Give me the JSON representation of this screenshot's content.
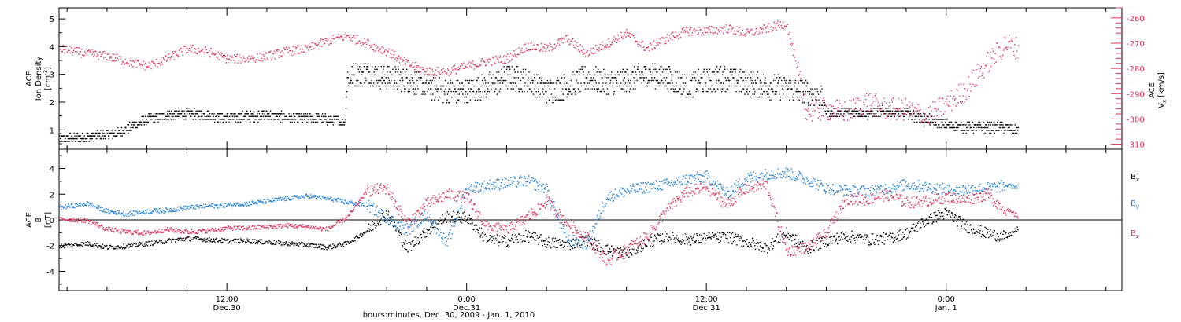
{
  "colors": {
    "density": "#000000",
    "vx": "#e0305a",
    "bx": "#000000",
    "by": "#1f7fd8",
    "bz": "#e0305a"
  },
  "xaxis": {
    "title": "hours:minutes, Dec. 30, 2009 - Jan. 1, 2010",
    "ticks": [
      {
        "t": 12,
        "time": "12:00",
        "date": "Dec.30"
      },
      {
        "t": 24,
        "time": "0:00",
        "date": "Dec.31"
      },
      {
        "t": 36,
        "time": "12:00",
        "date": "Dec.31"
      },
      {
        "t": 48,
        "time": "0:00",
        "date": "Jan. 1"
      }
    ],
    "range_hours": [
      3.6,
      56.8
    ],
    "data_end_hours": 51.6
  },
  "top_panel": {
    "left_label_1": "ACE",
    "left_label_2": "Ion Density",
    "left_unit_base": "[cm",
    "left_unit_sup": "-3",
    "left_unit_end": "]",
    "right_label_1": "ACE",
    "right_label_2_base": "V",
    "right_label_2_sub": "x",
    "right_unit": "[km/s]"
  },
  "bottom_panel": {
    "label_1": "ACE",
    "label_2": "B",
    "unit": "[nT]",
    "legend": [
      {
        "key": "bx",
        "base": "B",
        "sub": "x"
      },
      {
        "key": "by",
        "base": "B",
        "sub": "y"
      },
      {
        "key": "bz",
        "base": "B",
        "sub": "z"
      }
    ]
  },
  "chart_data": [
    {
      "type": "scatter",
      "panel": "top",
      "y_left": {
        "range": [
          0.3,
          5.4
        ],
        "ticks": [
          1,
          2,
          3,
          4,
          5
        ]
      },
      "y_right": {
        "range": [
          -312,
          -256
        ],
        "ticks": [
          -260,
          -270,
          -280,
          -290,
          -300,
          -310
        ]
      },
      "series": [
        {
          "key": "density",
          "axis": "left",
          "x": [
            3.6,
            5,
            6.5,
            8,
            9,
            10,
            11,
            12,
            13,
            14,
            15,
            16,
            17,
            17.9,
            18,
            19,
            20,
            21,
            22,
            23,
            24,
            25,
            26,
            27,
            28,
            29,
            30,
            31,
            32,
            33,
            34,
            35,
            36,
            37,
            38,
            39,
            40,
            41,
            41.8,
            42,
            43,
            44,
            45,
            46,
            47,
            48,
            49,
            50,
            51,
            51.6
          ],
          "y": [
            0.7,
            0.75,
            0.9,
            1.4,
            1.55,
            1.6,
            1.55,
            1.45,
            1.5,
            1.55,
            1.45,
            1.45,
            1.4,
            1.3,
            2.9,
            3.1,
            2.9,
            2.8,
            2.6,
            2.4,
            2.4,
            2.6,
            2.9,
            2.8,
            2.4,
            2.6,
            2.9,
            2.7,
            2.8,
            3.0,
            2.9,
            2.6,
            2.8,
            2.9,
            2.7,
            2.6,
            2.5,
            2.4,
            2.1,
            1.6,
            1.7,
            1.6,
            1.7,
            1.6,
            1.4,
            1.2,
            1.1,
            1.1,
            1.1,
            1.0
          ]
        },
        {
          "key": "vx",
          "axis": "right",
          "x": [
            3.6,
            5,
            6,
            7,
            8,
            9,
            10,
            11,
            12,
            13,
            14,
            15,
            16,
            17,
            18,
            19,
            20,
            21,
            22,
            23,
            24,
            25,
            26,
            27,
            28,
            29,
            30,
            31,
            32,
            33,
            34,
            35,
            36,
            37,
            38,
            39,
            40,
            41,
            42,
            43,
            44,
            45,
            46,
            47,
            48,
            49,
            50,
            51,
            51.6
          ],
          "y": [
            -272,
            -274,
            -275,
            -277,
            -279,
            -276,
            -272,
            -273,
            -276,
            -276,
            -275,
            -273,
            -272,
            -269,
            -267,
            -270,
            -273,
            -278,
            -281,
            -281,
            -279,
            -277,
            -276,
            -271,
            -272,
            -268,
            -274,
            -270,
            -266,
            -272,
            -268,
            -265,
            -265,
            -264,
            -266,
            -264,
            -262,
            -297,
            -296,
            -297,
            -293,
            -296,
            -296,
            -299,
            -294,
            -288,
            -278,
            -270,
            -272
          ]
        }
      ]
    },
    {
      "type": "scatter",
      "panel": "bottom",
      "y": {
        "range": [
          -5.5,
          5.5
        ],
        "ticks": [
          -4,
          -2,
          0,
          2,
          4
        ]
      },
      "reference_line": 0,
      "series": [
        {
          "key": "bx",
          "x": [
            3.6,
            5,
            6,
            7,
            8,
            9,
            10,
            11,
            12,
            13,
            14,
            15,
            16,
            17,
            18,
            19,
            20,
            21,
            22,
            23,
            24,
            25,
            26,
            27,
            28,
            29,
            30,
            31,
            32,
            33,
            34,
            35,
            36,
            37,
            38,
            39,
            40,
            41,
            42,
            43,
            44,
            45,
            46,
            47,
            48,
            49,
            50,
            51,
            51.6
          ],
          "y": [
            -2.0,
            -1.8,
            -2.1,
            -2.0,
            -1.8,
            -1.6,
            -1.4,
            -1.5,
            -1.6,
            -1.6,
            -1.7,
            -1.8,
            -1.9,
            -2.1,
            -1.8,
            -0.8,
            0.6,
            -2.2,
            -0.8,
            0.3,
            0.2,
            -1.5,
            -1.6,
            -1.2,
            -1.7,
            -1.9,
            -1.5,
            -2.3,
            -2.6,
            -1.7,
            -1.3,
            -1.5,
            -1.4,
            -1.3,
            -1.7,
            -2.1,
            -1.0,
            -2.2,
            -1.6,
            -1.2,
            -1.5,
            -1.4,
            -1.0,
            0.0,
            0.6,
            -0.5,
            -1.0,
            -1.3,
            -0.6
          ]
        },
        {
          "key": "by",
          "x": [
            3.6,
            5,
            6,
            7,
            8,
            9,
            10,
            11,
            12,
            13,
            14,
            15,
            16,
            17,
            18,
            19,
            20,
            21,
            22,
            23,
            24,
            25,
            26,
            27,
            28,
            29,
            30,
            31,
            32,
            33,
            34,
            35,
            36,
            37,
            38,
            39,
            40,
            41,
            42,
            43,
            44,
            45,
            46,
            47,
            48,
            49,
            50,
            51,
            51.6
          ],
          "y": [
            1.0,
            1.3,
            0.7,
            0.5,
            0.7,
            0.8,
            1.0,
            1.1,
            1.2,
            1.3,
            1.5,
            1.7,
            1.9,
            1.7,
            1.4,
            1.2,
            0.2,
            -0.8,
            0.5,
            -1.8,
            2.5,
            2.7,
            2.9,
            3.1,
            2.4,
            -1.5,
            -1.8,
            1.8,
            2.3,
            2.6,
            2.8,
            3.2,
            3.4,
            2.1,
            3.3,
            3.6,
            3.7,
            3.2,
            2.5,
            2.3,
            2.3,
            2.5,
            2.8,
            2.6,
            2.4,
            2.4,
            2.5,
            2.7,
            2.6
          ]
        },
        {
          "key": "bz",
          "x": [
            3.6,
            5,
            6,
            7,
            8,
            9,
            10,
            11,
            12,
            13,
            14,
            15,
            16,
            17,
            18,
            19,
            20,
            21,
            22,
            23,
            24,
            25,
            26,
            27,
            28,
            29,
            30,
            31,
            32,
            33,
            34,
            35,
            36,
            37,
            38,
            39,
            40,
            41,
            42,
            43,
            44,
            45,
            46,
            47,
            48,
            49,
            50,
            51,
            51.6
          ],
          "y": [
            0.1,
            0.0,
            -0.7,
            -0.9,
            -1.0,
            -0.7,
            -0.9,
            -0.8,
            -0.6,
            -0.6,
            -0.5,
            -0.4,
            -0.5,
            -0.7,
            0.2,
            2.3,
            2.5,
            -0.3,
            1.3,
            2.0,
            1.8,
            -0.5,
            -0.8,
            0.2,
            1.5,
            -0.2,
            -1.3,
            -3.2,
            -2.2,
            -1.3,
            0.8,
            2.2,
            2.6,
            1.2,
            2.5,
            2.8,
            -2.4,
            -2.1,
            -1.0,
            1.7,
            1.6,
            2.0,
            1.4,
            1.5,
            1.8,
            1.6,
            2.0,
            0.8,
            0.3
          ]
        }
      ]
    }
  ]
}
